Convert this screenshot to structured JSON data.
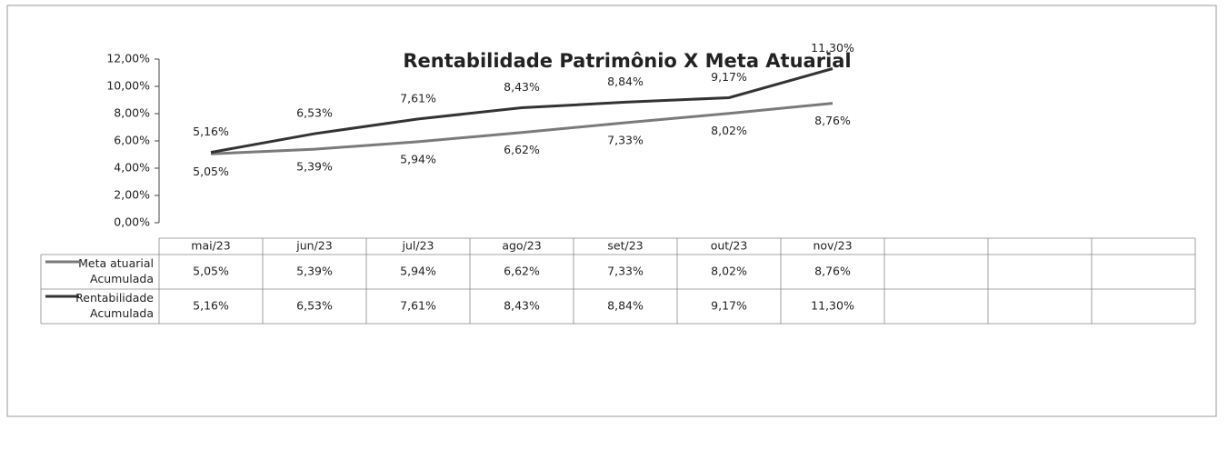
{
  "chart_data": {
    "type": "line",
    "title": "Rentabilidade Patrimônio X Meta Atuarial",
    "categories": [
      "mai/23",
      "jun/23",
      "jul/23",
      "ago/23",
      "set/23",
      "out/23",
      "nov/23"
    ],
    "series": [
      {
        "name": "Meta atuarial Acumulada",
        "color": "#7a7a7a",
        "values": [
          5.05,
          5.39,
          5.94,
          6.62,
          7.33,
          8.02,
          8.76
        ],
        "value_labels": [
          "5,05%",
          "5,39%",
          "5,94%",
          "6,62%",
          "7,33%",
          "8,02%",
          "8,76%"
        ]
      },
      {
        "name": "Rentabilidade Acumulada",
        "color": "#333333",
        "values": [
          5.16,
          6.53,
          7.61,
          8.43,
          8.84,
          9.17,
          11.3
        ],
        "value_labels": [
          "5,16%",
          "6,53%",
          "7,61%",
          "8,43%",
          "8,84%",
          "9,17%",
          "11,30%"
        ]
      }
    ],
    "ylim": [
      0,
      12
    ],
    "yticks": [
      {
        "value": 0,
        "label": "0,00%"
      },
      {
        "value": 2,
        "label": "2,00%"
      },
      {
        "value": 4,
        "label": "4,00%"
      },
      {
        "value": 6,
        "label": "6,00%"
      },
      {
        "value": 8,
        "label": "8,00%"
      },
      {
        "value": 10,
        "label": "10,00%"
      },
      {
        "value": 12,
        "label": "12,00%"
      }
    ],
    "grid": false
  }
}
